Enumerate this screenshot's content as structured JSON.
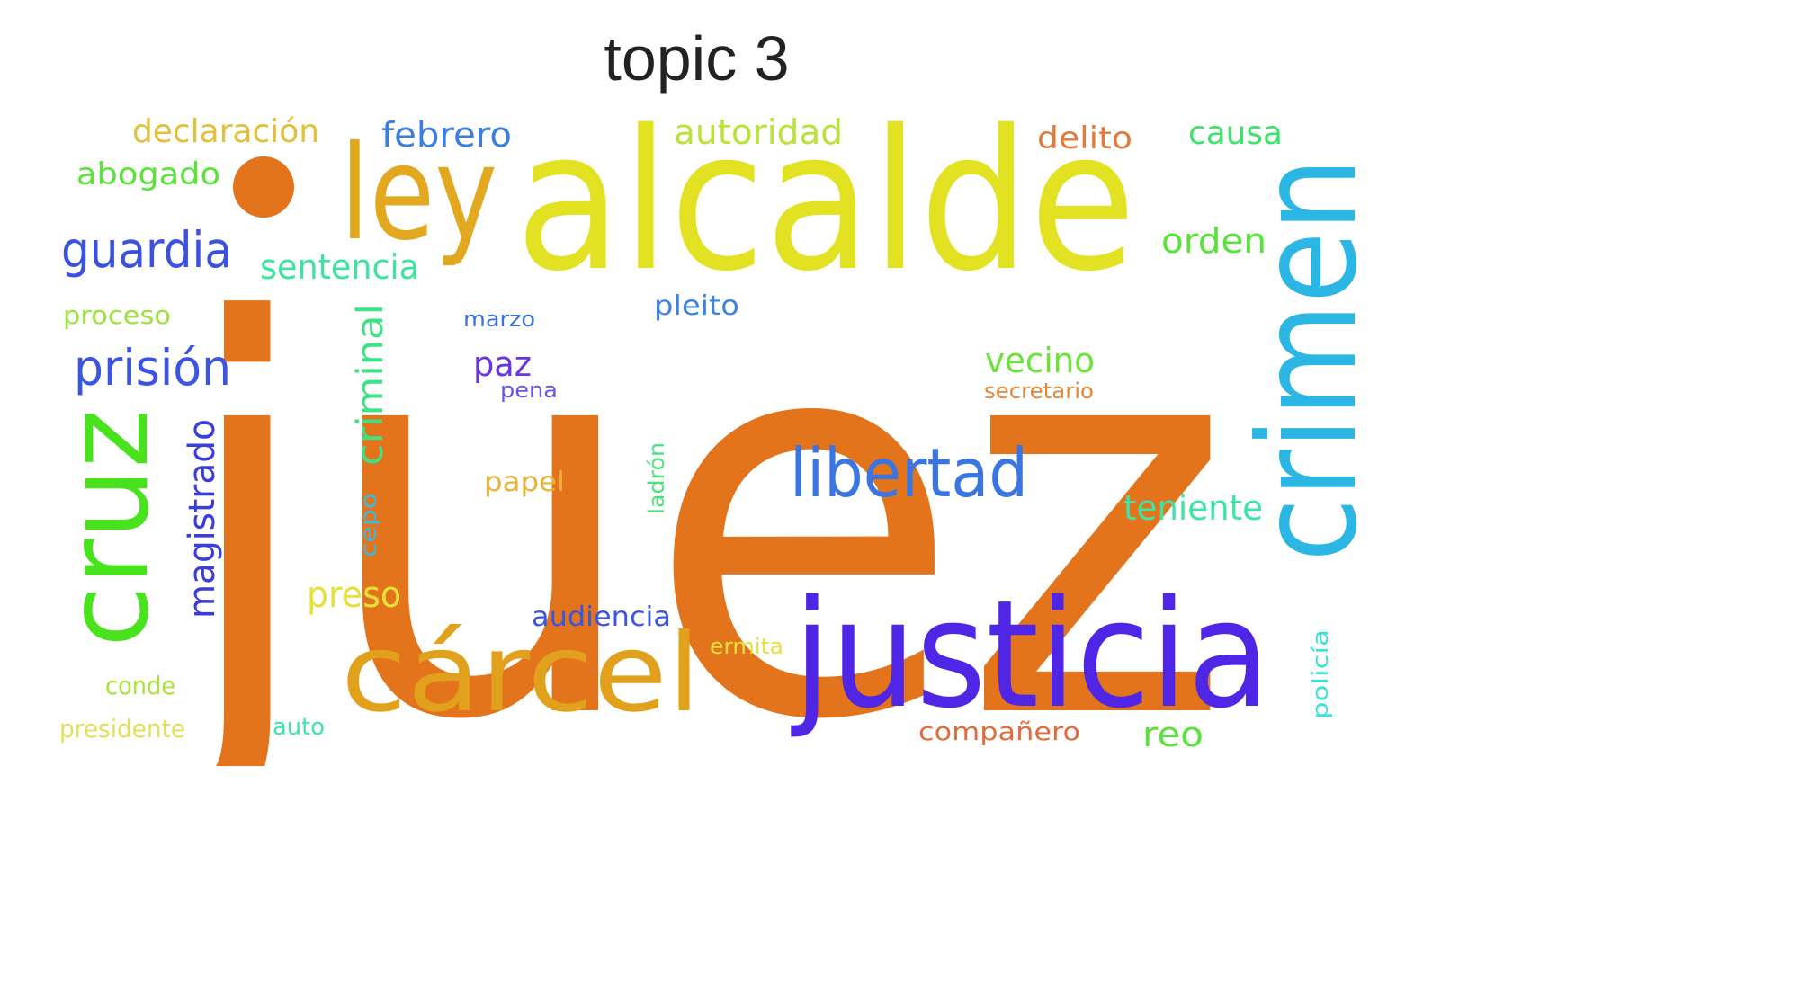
{
  "title": "topic 3",
  "words": [
    {
      "text": "juez",
      "color": "#e3741c"
    },
    {
      "text": "alcalde",
      "color": "#e2e122"
    },
    {
      "text": "justicia",
      "color": "#4f25e6"
    },
    {
      "text": "crimen",
      "color": "#2cb6e3"
    },
    {
      "text": "cárcel",
      "color": "#e2a11c"
    },
    {
      "text": "ley",
      "color": "#e2a81f"
    },
    {
      "text": "cruz",
      "color": "#48e31c"
    },
    {
      "text": "libertad",
      "color": "#3a76e2"
    },
    {
      "text": "guardia",
      "color": "#3b52e0"
    },
    {
      "text": "prisión",
      "color": "#3b55e0"
    },
    {
      "text": "magistrado",
      "color": "#3a3ddc"
    },
    {
      "text": "criminal",
      "color": "#3ce385"
    },
    {
      "text": "preso",
      "color": "#e4e23a"
    },
    {
      "text": "declaración",
      "color": "#e3c03c"
    },
    {
      "text": "febrero",
      "color": "#3b7de0"
    },
    {
      "text": "autoridad",
      "color": "#b9e33a"
    },
    {
      "text": "delito",
      "color": "#e37a3c"
    },
    {
      "text": "causa",
      "color": "#3ee36a"
    },
    {
      "text": "abogado",
      "color": "#5ae33a"
    },
    {
      "text": "orden",
      "color": "#57e33a"
    },
    {
      "text": "sentencia",
      "color": "#3ee3a0"
    },
    {
      "text": "proceso",
      "color": "#9ae33a"
    },
    {
      "text": "marzo",
      "color": "#3a6fe0"
    },
    {
      "text": "pleito",
      "color": "#3b83e0"
    },
    {
      "text": "paz",
      "color": "#6a35e2"
    },
    {
      "text": "pena",
      "color": "#6a55e2"
    },
    {
      "text": "vecino",
      "color": "#6de33a"
    },
    {
      "text": "secretario",
      "color": "#e3873a"
    },
    {
      "text": "papel",
      "color": "#e3b33a"
    },
    {
      "text": "ladrón",
      "color": "#4ee37a"
    },
    {
      "text": "cepo",
      "color": "#3ab9e3"
    },
    {
      "text": "teniente",
      "color": "#3ee3a8"
    },
    {
      "text": "audiencia",
      "color": "#3a56e0"
    },
    {
      "text": "ermita",
      "color": "#e3e33a"
    },
    {
      "text": "conde",
      "color": "#a9e33a"
    },
    {
      "text": "presidente",
      "color": "#e3e05a"
    },
    {
      "text": "auto",
      "color": "#3ee3b0"
    },
    {
      "text": "compañero",
      "color": "#e36a3a"
    },
    {
      "text": "reo",
      "color": "#5ae33a"
    },
    {
      "text": "policía",
      "color": "#3ae3d8"
    }
  ]
}
